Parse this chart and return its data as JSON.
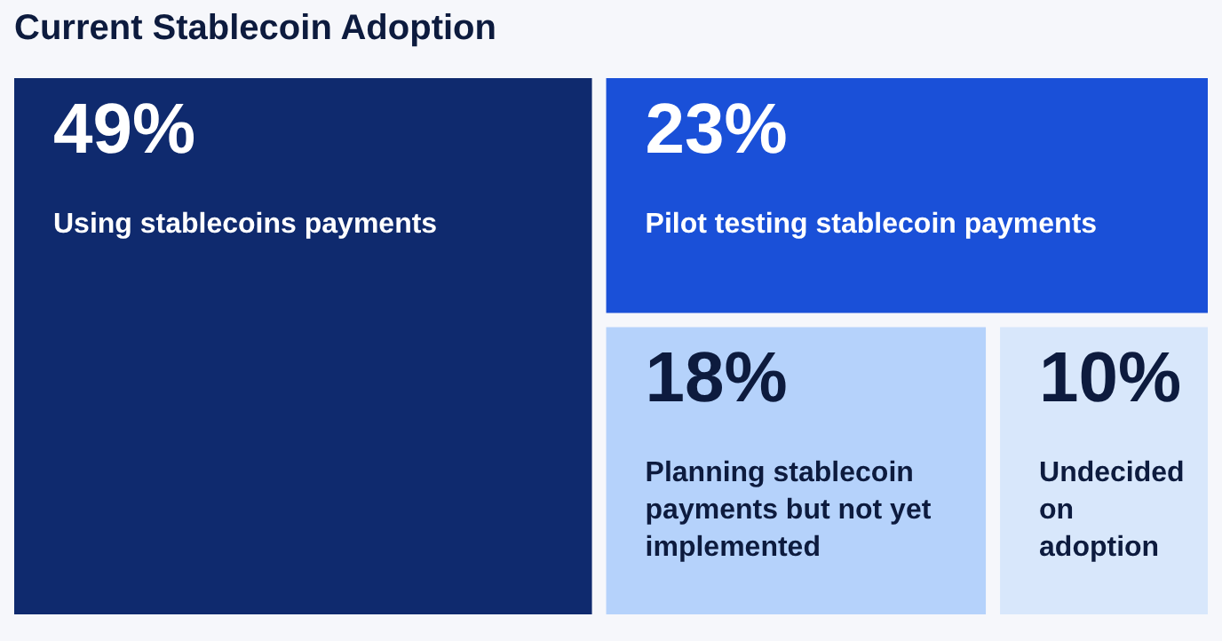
{
  "chart_data": {
    "type": "other",
    "title": "Current Stablecoin Adoption",
    "categories": [
      "Using stablecoins payments",
      "Pilot testing stablecoin payments",
      "Planning stablecoin payments but not yet implemented",
      "Undecided on adoption"
    ],
    "values": [
      49,
      23,
      18,
      10
    ],
    "value_labels": [
      "49%",
      "23%",
      "18%",
      "10%"
    ],
    "colors": [
      "#0f2a6e",
      "#1a50d8",
      "#b5d2fb",
      "#d8e7fb"
    ]
  }
}
